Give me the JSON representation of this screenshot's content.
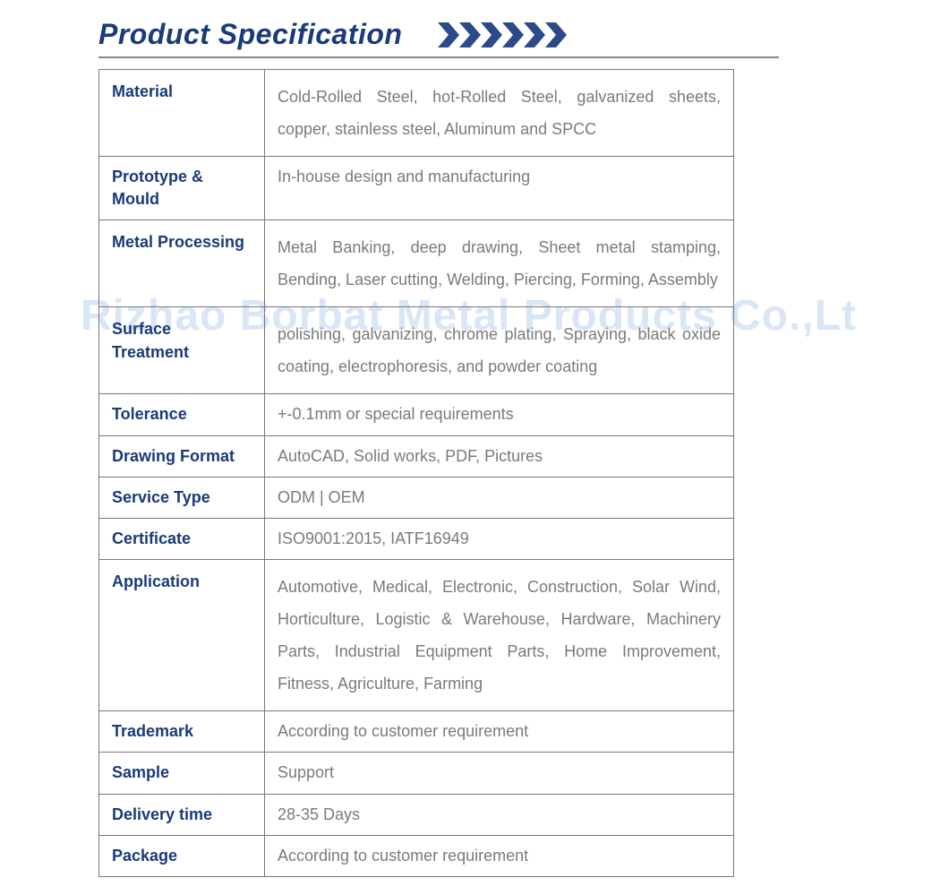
{
  "title": "Product Specification",
  "chevrons": {
    "count": 6,
    "fill": "#2a4a8a",
    "width": 24,
    "height": 28
  },
  "watermark": "Rizhao Borbat Metal Products Co.,Lt",
  "rows": [
    {
      "label": "Material",
      "value": "Cold-Rolled Steel, hot-Rolled Steel, galvanized sheets, copper, stainless steel, Aluminum and SPCC"
    },
    {
      "label": "Prototype & Mould",
      "value": "In-house design and manufacturing"
    },
    {
      "label": "Metal Processing",
      "value": "Metal Banking, deep drawing, Sheet metal stamping, Bending, Laser cutting, Welding, Piercing, Forming, Assembly"
    },
    {
      "label": "Surface Treatment",
      "value": "polishing, galvanizing, chrome plating, Spraying, black oxide coating, electrophoresis, and powder coating"
    },
    {
      "label": "Tolerance",
      "value": "+-0.1mm or special requirements"
    },
    {
      "label": "Drawing Format",
      "value": "AutoCAD, Solid works, PDF, Pictures"
    },
    {
      "label": "Service Type",
      "value": "ODM | OEM"
    },
    {
      "label": "Certificate",
      "value": "ISO9001:2015, IATF16949"
    },
    {
      "label": "Application",
      "value": "Automotive, Medical, Electronic, Construction, Solar Wind, Horticulture, Logistic & Warehouse, Hardware, Machinery Parts, Industrial Equipment Parts, Home Improvement, Fitness, Agriculture, Farming"
    },
    {
      "label": "Trademark",
      "value": "According to customer requirement"
    },
    {
      "label": "Sample",
      "value": "Support"
    },
    {
      "label": "Delivery time",
      "value": "28-35 Days"
    },
    {
      "label": "Package",
      "value": "According to customer requirement"
    }
  ],
  "colors": {
    "label": "#1a3a7a",
    "value": "#7a7a7a",
    "border": "#777777",
    "title": "#1a3a7a",
    "watermark": "#d8e6f6"
  },
  "typography": {
    "title_fontsize": 32,
    "cell_fontsize": 18,
    "watermark_fontsize": 48
  },
  "single_line_rows": [
    1,
    4,
    5,
    6,
    7,
    9,
    10,
    11,
    12
  ]
}
